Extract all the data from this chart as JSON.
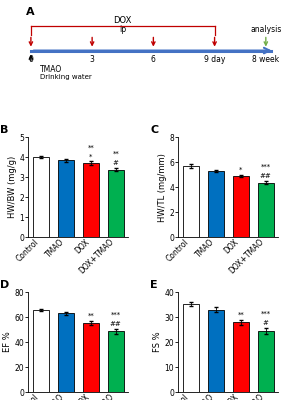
{
  "panel_A": {
    "timeline_color": "#4472C4",
    "dox_bracket_color": "#C00000",
    "dox_label": "DOX",
    "ip_label": "ip",
    "arrow_color": "#C00000",
    "green_arrow_color": "#70AD47",
    "day_labels": [
      "0",
      "3",
      "6",
      "9 day"
    ],
    "week_label": "8 week",
    "analysis_label": "analysis",
    "tmao_label": "TMAO",
    "water_label": "Drinking water"
  },
  "panel_B": {
    "label": "B",
    "ylabel": "HW/BW (mg/g)",
    "ylim": [
      0,
      5
    ],
    "yticks": [
      0,
      1,
      2,
      3,
      4,
      5
    ],
    "categories": [
      "Control",
      "TMAO",
      "DOX",
      "DOX+TMAO"
    ],
    "values": [
      4.02,
      3.85,
      3.72,
      3.38
    ],
    "errors": [
      0.07,
      0.06,
      0.08,
      0.09
    ],
    "colors": [
      "#FFFFFF",
      "#0070C0",
      "#FF0000",
      "#00B050"
    ],
    "edge_colors": [
      "#000000",
      "#000000",
      "#000000",
      "#000000"
    ],
    "sig_above": [
      "",
      "",
      "*",
      "#"
    ],
    "sig_below": [
      "",
      "",
      "**",
      "**"
    ]
  },
  "panel_C": {
    "label": "C",
    "ylabel": "HW/TL (mg/mm)",
    "ylim": [
      0,
      8
    ],
    "yticks": [
      0,
      2,
      4,
      6,
      8
    ],
    "categories": [
      "Control",
      "TMAO",
      "DOX",
      "DOX+TMAO"
    ],
    "values": [
      5.72,
      5.32,
      4.92,
      4.38
    ],
    "errors": [
      0.15,
      0.1,
      0.1,
      0.12
    ],
    "colors": [
      "#FFFFFF",
      "#0070C0",
      "#FF0000",
      "#00B050"
    ],
    "edge_colors": [
      "#000000",
      "#000000",
      "#000000",
      "#000000"
    ],
    "sig_above": [
      "",
      "",
      "*",
      "##"
    ],
    "sig_below": [
      "",
      "",
      "",
      "***"
    ]
  },
  "panel_D": {
    "label": "D",
    "ylabel": "EF %",
    "ylim": [
      0,
      80
    ],
    "yticks": [
      0,
      20,
      40,
      60,
      80
    ],
    "categories": [
      "Control",
      "TMAO",
      "DOX",
      "DOX+TMAO"
    ],
    "values": [
      65.5,
      63.0,
      55.5,
      48.5
    ],
    "errors": [
      1.0,
      1.2,
      1.5,
      2.0
    ],
    "colors": [
      "#FFFFFF",
      "#0070C0",
      "#FF0000",
      "#00B050"
    ],
    "edge_colors": [
      "#000000",
      "#000000",
      "#000000",
      "#000000"
    ],
    "sig_above": [
      "",
      "",
      "**",
      "##"
    ],
    "sig_below": [
      "",
      "",
      "",
      "***"
    ]
  },
  "panel_E": {
    "label": "E",
    "ylabel": "FS %",
    "ylim": [
      0,
      40
    ],
    "yticks": [
      0,
      10,
      20,
      30,
      40
    ],
    "categories": [
      "Control",
      "TMAO",
      "DOX",
      "DOX+TMAO"
    ],
    "values": [
      35.2,
      33.0,
      28.0,
      24.5
    ],
    "errors": [
      0.8,
      0.9,
      1.0,
      1.2
    ],
    "colors": [
      "#FFFFFF",
      "#0070C0",
      "#FF0000",
      "#00B050"
    ],
    "edge_colors": [
      "#000000",
      "#000000",
      "#000000",
      "#000000"
    ],
    "sig_above": [
      "",
      "",
      "**",
      "#"
    ],
    "sig_below": [
      "",
      "",
      "",
      "***"
    ]
  },
  "background_color": "#FFFFFF",
  "bar_width": 0.65,
  "tick_fontsize": 5.5,
  "label_fontsize": 6.0,
  "sig_fontsize": 5.0
}
